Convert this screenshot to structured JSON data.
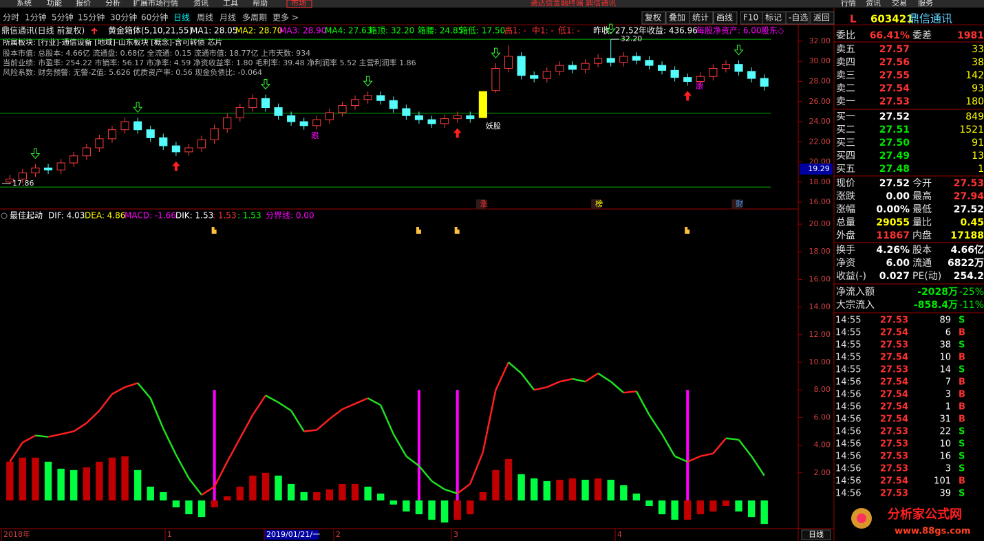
{
  "menu": [
    "系统",
    "功能",
    "报价",
    "分析",
    "扩展市场行情",
    "资讯",
    "工具",
    "帮助",
    "市场"
  ],
  "app_title": "通达信金融终端  鼎信通讯",
  "top_right": [
    "行情",
    "资讯",
    "交易",
    "服务"
  ],
  "tabs": [
    "分时",
    "1分钟",
    "5分钟",
    "15分钟",
    "30分钟",
    "60分钟",
    "日线",
    "周线",
    "月线",
    "多周期",
    "更多 >"
  ],
  "toolbar": [
    "复权",
    "叠加",
    "统计",
    "画线",
    "F10",
    "标记",
    "-自选",
    "返回"
  ],
  "chart_data": [
    {
      "type": "candlestick",
      "title": "鼎信通讯(日线 前复权)",
      "indicator": "黄金箱体(5,10,21,55)",
      "legend": [
        {
          "text": "MA1: 28.05",
          "color": "#ffffff"
        },
        {
          "text": "MA2: 28.70",
          "color": "#ffff00"
        },
        {
          "text": "MA3: 28.90",
          "color": "#ff00ff"
        },
        {
          "text": "MA4: 27.63",
          "color": "#00ff00"
        },
        {
          "text": "箱顶: 32.20",
          "color": "#00ff00"
        },
        {
          "text": "箱腰: 24.85",
          "color": "#00ff00"
        },
        {
          "text": "箱低: 17.50",
          "color": "#00ff00"
        },
        {
          "text": "高1: -",
          "color": "#ff3232"
        },
        {
          "text": "中1: -",
          "color": "#ff3232"
        },
        {
          "text": "低1: -",
          "color": "#ff3232"
        }
      ],
      "stats": [
        {
          "text": "昨收: 27.52",
          "color": "#ffffff"
        },
        {
          "text": "年收益: 436.96",
          "color": "#ffffff"
        },
        {
          "text": "每股净资产: 6.00",
          "color": "#ff00ff"
        },
        {
          "text": "股东◇",
          "color": "#ff00ff"
        }
      ],
      "info": [
        "所属板块: [行业]-通信设备 [地域]-山东板块 [概念]-含可转债 芯片",
        "股本市值: 总股本: 4.66亿 流通盘: 0.68亿 全流通: 0.15 流通市值: 18.77亿 上市天数: 934",
        "当前业绩: 市盈率: 254.22 市销率: 56.17 市净率: 4.59 净资收益率: 1.80 毛利率: 39.48 净利润率 5.52 主营利润率 1.86",
        "风险系数: 财务预警: 无警-Z值: 5.626 优质资产率: 0.56 现金负债比: -0.064"
      ],
      "open": [
        18.0,
        18.3,
        18.9,
        19.4,
        19.2,
        19.9,
        20.6,
        21.4,
        22.3,
        23.2,
        24.0,
        23.2,
        22.4,
        21.6,
        21.0,
        21.4,
        22.2,
        23.3,
        24.4,
        25.4,
        26.3,
        25.4,
        24.6,
        24.0,
        23.6,
        24.2,
        24.9,
        25.6,
        26.2,
        26.6,
        26.1,
        25.3,
        24.6,
        24.2,
        23.8,
        24.3,
        24.6,
        24.4,
        27.1,
        29.3,
        30.5,
        28.6,
        28.3,
        29.0,
        29.6,
        29.2,
        29.8,
        30.3,
        29.9,
        30.5,
        30.1,
        29.6,
        29.1,
        28.4,
        28.0,
        28.5,
        29.3,
        29.7,
        29.0,
        28.3
      ],
      "high": [
        18.7,
        19.3,
        19.8,
        19.8,
        20.3,
        21.0,
        21.8,
        22.7,
        23.6,
        24.4,
        24.4,
        23.6,
        22.8,
        22.0,
        21.8,
        22.6,
        23.7,
        24.8,
        25.8,
        26.7,
        26.7,
        25.8,
        25.0,
        24.4,
        24.6,
        25.3,
        26.0,
        26.6,
        27.0,
        27.0,
        26.5,
        25.7,
        25.0,
        24.6,
        24.7,
        25.0,
        25.0,
        27.0,
        29.8,
        31.6,
        30.9,
        29.0,
        29.4,
        30.0,
        30.0,
        30.2,
        30.7,
        32.2,
        30.9,
        30.9,
        30.5,
        30.0,
        29.5,
        28.8,
        28.9,
        29.7,
        30.1,
        30.1,
        29.4,
        28.7
      ],
      "low": [
        17.86,
        17.9,
        18.5,
        18.8,
        18.8,
        19.5,
        20.2,
        21.0,
        21.9,
        22.8,
        22.8,
        22.0,
        21.2,
        20.6,
        20.6,
        21.0,
        21.8,
        22.9,
        24.0,
        25.0,
        25.0,
        24.2,
        23.6,
        23.2,
        23.2,
        23.8,
        24.5,
        25.2,
        25.8,
        25.7,
        24.9,
        24.2,
        23.8,
        23.4,
        23.4,
        23.9,
        23.9,
        24.4,
        26.9,
        28.9,
        28.2,
        27.9,
        27.9,
        28.6,
        28.8,
        28.8,
        29.4,
        29.5,
        29.5,
        29.7,
        29.2,
        28.7,
        28.0,
        27.6,
        27.6,
        28.1,
        28.9,
        28.6,
        27.9,
        27.1
      ],
      "close": [
        18.3,
        18.9,
        19.4,
        19.2,
        19.9,
        20.6,
        21.4,
        22.3,
        23.2,
        24.0,
        23.2,
        22.4,
        21.6,
        21.0,
        21.4,
        22.2,
        23.3,
        24.4,
        25.4,
        26.3,
        25.4,
        24.6,
        24.0,
        23.6,
        24.2,
        24.9,
        25.6,
        26.2,
        26.6,
        26.1,
        25.3,
        24.6,
        24.2,
        23.8,
        24.3,
        24.6,
        24.3,
        27.0,
        29.3,
        30.5,
        28.6,
        28.3,
        29.0,
        29.6,
        29.2,
        29.8,
        30.3,
        29.9,
        30.5,
        30.1,
        29.6,
        29.1,
        28.4,
        28.0,
        28.5,
        29.3,
        29.7,
        29.0,
        28.3,
        27.52
      ],
      "colors": {
        "up": "#ff3c3c",
        "down": "#54fcfc",
        "limit": "#ffff00"
      },
      "limit_candle": 37,
      "box_lines": [
        {
          "value": 32.2,
          "color": "#00b000"
        },
        {
          "value": 24.85,
          "color": "#00b000"
        },
        {
          "value": 17.5,
          "color": "#00b000"
        }
      ],
      "annotations": [
        {
          "text": "17.86",
          "value": 17.86
        },
        {
          "text": "32.20",
          "value": 32.2
        }
      ],
      "marks": [
        "跟",
        "跟",
        "妖股",
        "涨",
        "榜",
        "财"
      ],
      "cursor_value": 19.29,
      "ylim": [
        15.4,
        32.3
      ],
      "yticks": [
        {
          "value": 16,
          "label": "16.00"
        },
        {
          "value": 18,
          "label": "18.00"
        },
        {
          "value": 20,
          "label": "20.00"
        },
        {
          "value": 22,
          "label": "22.00"
        },
        {
          "value": 24,
          "label": "24.00"
        },
        {
          "value": 26,
          "label": "26.00"
        },
        {
          "value": 28,
          "label": "28.00"
        },
        {
          "value": 30,
          "label": "30.00"
        },
        {
          "value": 32,
          "label": "32.00"
        }
      ]
    },
    {
      "type": "macd",
      "title": "最佳起动",
      "legend": [
        {
          "text": "DIF: 4.03",
          "color": "#ffffff"
        },
        {
          "text": "DEA: 4.86",
          "color": "#ffff00"
        },
        {
          "text": "MACD: -1.66",
          "color": "#ff00ff"
        },
        {
          "text": "DIK: 1.53",
          "color": "#ffffff"
        },
        {
          "text": ": 1.53",
          "color": "#ff3232"
        },
        {
          "text": ": 1.53",
          "color": "#00ff00"
        },
        {
          "text": "分界线: 0.00",
          "color": "#ff00ff"
        }
      ],
      "line": {
        "values": [
          2.8,
          4.2,
          4.7,
          4.6,
          4.8,
          5.0,
          5.6,
          6.5,
          7.7,
          8.2,
          8.5,
          7.4,
          5.2,
          3.3,
          1.6,
          0.4,
          1.0,
          2.8,
          4.5,
          6.2,
          7.6,
          7.1,
          6.5,
          5.0,
          5.1,
          5.9,
          6.6,
          7.0,
          7.4,
          6.9,
          4.8,
          3.2,
          2.5,
          1.4,
          0.8,
          0.5,
          1.2,
          3.5,
          8.0,
          10.0,
          9.2,
          8.0,
          8.2,
          8.6,
          8.8,
          8.6,
          9.2,
          8.6,
          7.8,
          7.9,
          6.2,
          4.8,
          3.2,
          2.8,
          3.2,
          3.4,
          4.5,
          4.4,
          3.2,
          1.8
        ],
        "up_color": "#ff2020",
        "down_color": "#20e020"
      },
      "bars": {
        "values": [
          2.8,
          3.1,
          3.1,
          2.8,
          2.3,
          2.2,
          2.4,
          2.8,
          3.1,
          3.2,
          2.2,
          1.0,
          0.6,
          -0.5,
          -1.0,
          -1.2,
          -0.5,
          0.3,
          1.0,
          1.8,
          2.0,
          1.8,
          1.2,
          0.6,
          0.6,
          0.8,
          1.2,
          1.2,
          1.0,
          0.5,
          -0.3,
          -0.8,
          -1.0,
          -1.4,
          -1.6,
          -1.4,
          -1.0,
          0.6,
          2.2,
          3.0,
          1.9,
          1.6,
          1.4,
          1.5,
          1.6,
          1.5,
          1.6,
          1.5,
          1.1,
          0.5,
          -0.4,
          -1.0,
          -1.4,
          -1.4,
          -1.0,
          -0.8,
          -0.4,
          -0.8,
          -1.2,
          -1.7
        ],
        "up_color": "#c00000",
        "down_color": "#00ff40"
      },
      "signals": {
        "values": [
          null,
          null,
          null,
          null,
          null,
          null,
          null,
          null,
          null,
          null,
          null,
          null,
          null,
          null,
          null,
          null,
          8,
          null,
          null,
          null,
          null,
          null,
          null,
          null,
          null,
          null,
          null,
          null,
          null,
          null,
          null,
          null,
          8,
          null,
          null,
          8,
          null,
          null,
          null,
          null,
          null,
          null,
          null,
          null,
          null,
          null,
          null,
          null,
          null,
          null,
          null,
          null,
          null,
          8,
          null,
          null,
          null,
          null,
          null,
          null
        ],
        "color": "#ff00ff"
      },
      "ylim": [
        -1.8,
        20.4
      ],
      "yticks": [
        {
          "value": 2,
          "label": "2.00"
        },
        {
          "value": 4,
          "label": "4.00"
        },
        {
          "value": 6,
          "label": "6.00"
        },
        {
          "value": 8,
          "label": "8.00"
        },
        {
          "value": 10,
          "label": "10.00"
        },
        {
          "value": 12,
          "label": "12.00"
        },
        {
          "value": 14,
          "label": "14.00"
        },
        {
          "value": 16,
          "label": "16.00"
        },
        {
          "value": 18,
          "label": "18.00"
        },
        {
          "value": 20,
          "label": "20.00"
        }
      ]
    }
  ],
  "date_axis": {
    "labels": [
      "2018年",
      "1",
      "2019/01/21/一",
      "2",
      "3",
      "4"
    ],
    "period": "日线"
  },
  "quote": {
    "market": "L",
    "code": "603421",
    "name": "鼎信通讯",
    "groups": [
      [
        {
          "cells": [
            "委比",
            "66.41%",
            "委差",
            "1981"
          ],
          "colors": [
            "#e0e0e0",
            "#ff3232",
            "#e0e0e0",
            "#ff3232"
          ]
        }
      ],
      [
        {
          "cells": [
            "卖五",
            "27.57",
            "33"
          ],
          "colors": [
            "#e0e0e0",
            "#ff3232",
            "#ffff00"
          ]
        },
        {
          "cells": [
            "卖四",
            "27.56",
            "38"
          ],
          "colors": [
            "#e0e0e0",
            "#ff3232",
            "#ffff00"
          ]
        },
        {
          "cells": [
            "卖三",
            "27.55",
            "142"
          ],
          "colors": [
            "#e0e0e0",
            "#ff3232",
            "#ffff00"
          ]
        },
        {
          "cells": [
            "卖二",
            "27.54",
            "93"
          ],
          "colors": [
            "#e0e0e0",
            "#ff3232",
            "#ffff00"
          ]
        },
        {
          "cells": [
            "卖一",
            "27.53",
            "180"
          ],
          "colors": [
            "#e0e0e0",
            "#ff3232",
            "#ffff00"
          ]
        }
      ],
      [
        {
          "cells": [
            "买一",
            "27.52",
            "849"
          ],
          "colors": [
            "#e0e0e0",
            "#ffffff",
            "#ffff00"
          ]
        },
        {
          "cells": [
            "买二",
            "27.51",
            "1521"
          ],
          "colors": [
            "#e0e0e0",
            "#00e600",
            "#ffff00"
          ]
        },
        {
          "cells": [
            "买三",
            "27.50",
            "91"
          ],
          "colors": [
            "#e0e0e0",
            "#00e600",
            "#ffff00"
          ]
        },
        {
          "cells": [
            "买四",
            "27.49",
            "13"
          ],
          "colors": [
            "#e0e0e0",
            "#00e600",
            "#ffff00"
          ]
        },
        {
          "cells": [
            "买五",
            "27.48",
            "1"
          ],
          "colors": [
            "#e0e0e0",
            "#00e600",
            "#ffff00"
          ]
        }
      ],
      [
        {
          "cells": [
            "现价",
            "27.52",
            "今开",
            "27.53"
          ],
          "colors": [
            "#e0e0e0",
            "#ffffff",
            "#e0e0e0",
            "#ff3232"
          ]
        },
        {
          "cells": [
            "涨跌",
            "0.00",
            "最高",
            "27.94"
          ],
          "colors": [
            "#e0e0e0",
            "#ffffff",
            "#e0e0e0",
            "#ff3232"
          ]
        },
        {
          "cells": [
            "涨幅",
            "0.00%",
            "最低",
            "27.52"
          ],
          "colors": [
            "#e0e0e0",
            "#ffffff",
            "#e0e0e0",
            "#ffffff"
          ]
        },
        {
          "cells": [
            "总量",
            "29055",
            "量比",
            "0.45"
          ],
          "colors": [
            "#e0e0e0",
            "#ffff00",
            "#e0e0e0",
            "#ffff00"
          ]
        },
        {
          "cells": [
            "外盘",
            "11867",
            "内盘",
            "17188"
          ],
          "colors": [
            "#e0e0e0",
            "#ff3232",
            "#e0e0e0",
            "#ffff00"
          ]
        }
      ],
      [
        {
          "cells": [
            "换手",
            "4.26%",
            "股本",
            "4.66亿"
          ],
          "colors": [
            "#e0e0e0",
            "#ffffff",
            "#e0e0e0",
            "#ffffff"
          ]
        },
        {
          "cells": [
            "净资",
            "6.00",
            "流通",
            "6822万"
          ],
          "colors": [
            "#e0e0e0",
            "#ffffff",
            "#e0e0e0",
            "#ffffff"
          ]
        },
        {
          "cells": [
            "收益(-)",
            "0.027",
            "PE(动)",
            "254.2"
          ],
          "colors": [
            "#e0e0e0",
            "#ffffff",
            "#e0e0e0",
            "#ffffff"
          ]
        }
      ],
      [
        {
          "cells": [
            "净流入额",
            "-2028万",
            "-25%"
          ],
          "colors": [
            "#e0e0e0",
            "#00e600",
            "#00e600"
          ]
        },
        {
          "cells": [
            "大宗流入",
            "-858.4万",
            "-11%"
          ],
          "colors": [
            "#e0e0e0",
            "#00e600",
            "#00e600"
          ]
        }
      ]
    ]
  },
  "trades": {
    "rows": [
      [
        "14:55",
        "27.53",
        "89",
        "S"
      ],
      [
        "14:55",
        "27.54",
        "6",
        "B"
      ],
      [
        "14:55",
        "27.53",
        "38",
        "S"
      ],
      [
        "14:55",
        "27.54",
        "10",
        "B"
      ],
      [
        "14:55",
        "27.53",
        "14",
        "S"
      ],
      [
        "14:56",
        "27.54",
        "7",
        "B"
      ],
      [
        "14:56",
        "27.54",
        "3",
        "B"
      ],
      [
        "14:56",
        "27.54",
        "1",
        "B"
      ],
      [
        "14:56",
        "27.54",
        "31",
        "B"
      ],
      [
        "14:56",
        "27.53",
        "22",
        "S"
      ],
      [
        "14:56",
        "27.53",
        "10",
        "S"
      ],
      [
        "14:56",
        "27.53",
        "16",
        "S"
      ],
      [
        "14:56",
        "27.53",
        "3",
        "S"
      ],
      [
        "14:56",
        "27.54",
        "101",
        "B"
      ],
      [
        "14:56",
        "27.53",
        "39",
        "S"
      ]
    ],
    "side_colors": {
      "B": "#ff3232",
      "S": "#00e600"
    }
  },
  "watermark": {
    "name": "分析家公式网",
    "url": "www.88gs.com"
  }
}
